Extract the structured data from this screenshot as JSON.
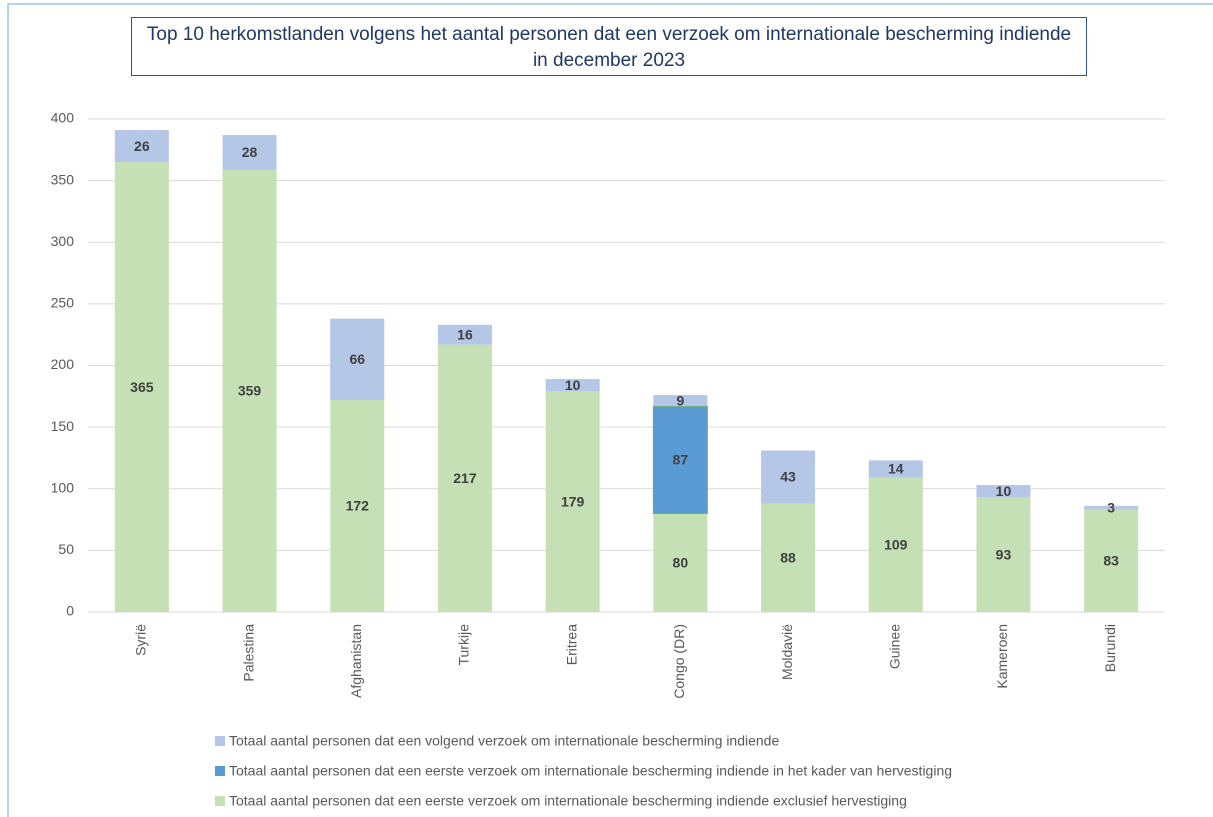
{
  "chart_data": {
    "type": "stacked_bar",
    "title": "Top 10 herkomstlanden volgens het aantal personen dat een verzoek om internationale bescherming indiende in december 2023",
    "categories": [
      "Syrië",
      "Palestina",
      "Afghanistan",
      "Turkije",
      "Eritrea",
      "Congo (DR)",
      "Moldavië",
      "Guinee",
      "Kameroen",
      "Burundi"
    ],
    "series": [
      {
        "name": "Totaal aantal personen dat een eerste verzoek om internationale bescherming indiende exclusief hervestiging",
        "color": "#c5e0b4",
        "values": [
          365,
          359,
          172,
          217,
          179,
          80,
          88,
          109,
          93,
          83
        ]
      },
      {
        "name": "Totaal aantal personen dat een eerste verzoek om internationale bescherming indiende in het kader van hervestiging",
        "color": "#5b9bd5",
        "values": [
          null,
          null,
          null,
          null,
          null,
          87,
          null,
          null,
          null,
          null
        ]
      },
      {
        "name": "Totaal aantal personen dat een volgend verzoek om internationale bescherming indiende",
        "color": "#b4c7e7",
        "values": [
          26,
          28,
          66,
          16,
          10,
          9,
          43,
          14,
          10,
          3
        ]
      }
    ],
    "ylim": [
      0,
      400
    ],
    "yticks": [
      0,
      50,
      100,
      150,
      200,
      250,
      300,
      350,
      400
    ],
    "grid": true,
    "legend": "bottom"
  }
}
